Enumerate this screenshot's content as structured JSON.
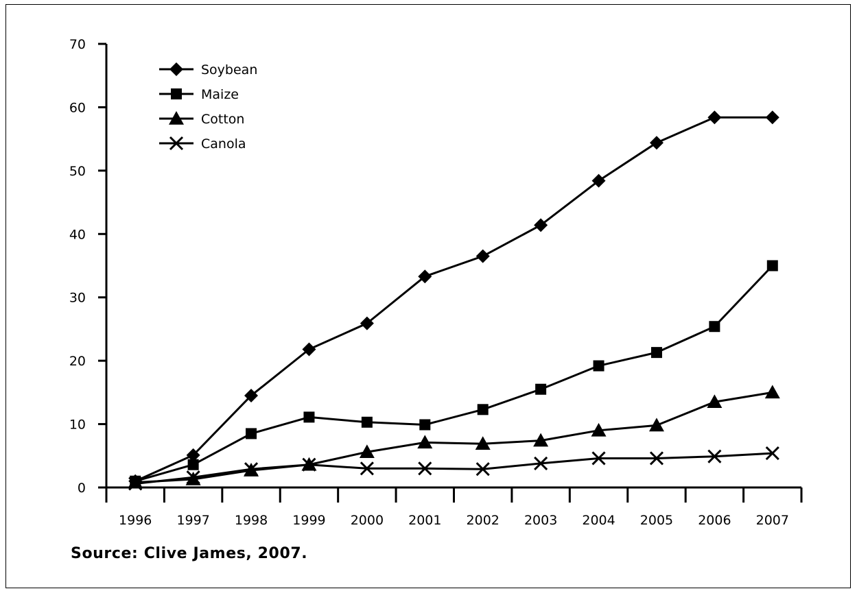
{
  "chart_data": {
    "type": "line",
    "x": [
      "1996",
      "1997",
      "1998",
      "1999",
      "2000",
      "2001",
      "2002",
      "2003",
      "2004",
      "2005",
      "2006",
      "2007"
    ],
    "series": [
      {
        "name": "Soybean",
        "marker": "diamond",
        "values": [
          1.0,
          5.1,
          14.5,
          21.8,
          25.9,
          33.3,
          36.5,
          41.4,
          48.4,
          54.4,
          58.4,
          58.4
        ]
      },
      {
        "name": "Maize",
        "marker": "square",
        "values": [
          1.0,
          3.6,
          8.5,
          11.1,
          10.3,
          9.9,
          12.3,
          15.5,
          19.2,
          21.3,
          25.4,
          35.0
        ]
      },
      {
        "name": "Cotton",
        "marker": "triangle",
        "values": [
          0.8,
          1.3,
          2.7,
          3.6,
          5.6,
          7.1,
          6.9,
          7.4,
          9.0,
          9.8,
          13.5,
          15.0
        ]
      },
      {
        "name": "Canola",
        "marker": "x",
        "values": [
          0.6,
          1.6,
          2.9,
          3.6,
          3.0,
          3.0,
          2.9,
          3.8,
          4.6,
          4.6,
          4.9,
          5.4
        ]
      }
    ],
    "ylim": [
      0,
      70
    ],
    "yticks": [
      "0",
      "10",
      "20",
      "30",
      "40",
      "50",
      "60",
      "70"
    ],
    "grid": false,
    "legend_position": "top-left",
    "line_color": "#000000"
  },
  "source": "Source: Clive James, 2007."
}
